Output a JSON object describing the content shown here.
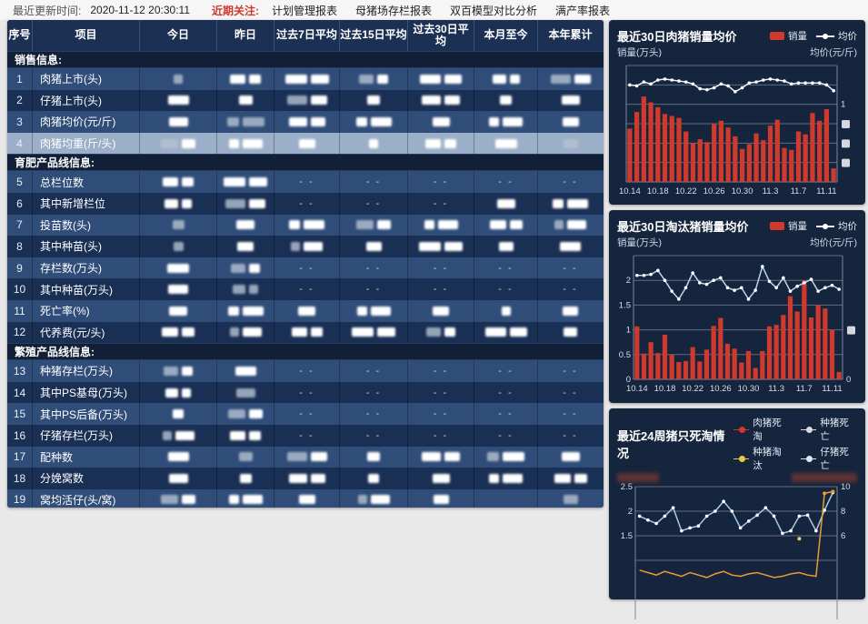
{
  "topbar": {
    "update_label": "最近更新时间:",
    "update_time": "2020-11-12 20:30:11",
    "focus_label": "近期关注:",
    "tabs": [
      "计划管理报表",
      "母猪场存栏报表",
      "双百模型对比分析",
      "满产率报表"
    ]
  },
  "table": {
    "headers": [
      "序号",
      "项目",
      "今日",
      "昨日",
      "过去7日平均",
      "过去15日平均",
      "过去30日平均",
      "本月至今",
      "本年累计"
    ],
    "sections": [
      {
        "title": "销售信息:",
        "rows": [
          {
            "no": "1",
            "label": "肉猪上市(头)",
            "hl": false,
            "cells": [
              "g1",
              "b2",
              "b2",
              "b2",
              "b2",
              "b2",
              "b2"
            ]
          },
          {
            "no": "2",
            "label": "仔猪上市(头)",
            "hl": false,
            "cells": [
              "b1",
              "b1",
              "b2",
              "b1",
              "b2",
              "b1",
              "b1"
            ]
          },
          {
            "no": "3",
            "label": "肉猪均价(元/斤)",
            "hl": false,
            "cells": [
              "b1",
              "g2",
              "b2",
              "b2",
              "b1",
              "b2",
              "b1"
            ]
          },
          {
            "no": "4",
            "label": "肉猪均重(斤/头)",
            "hl": true,
            "cells": [
              "b2",
              "b2",
              "b1",
              "b1",
              "b2",
              "b1",
              "g1"
            ]
          }
        ]
      },
      {
        "title": "育肥产品线信息:",
        "rows": [
          {
            "no": "5",
            "label": "总栏位数",
            "hl": false,
            "cells": [
              "b2",
              "b2",
              "d",
              "d",
              "d",
              "d",
              "d"
            ]
          },
          {
            "no": "6",
            "label": "其中新增栏位",
            "hl": false,
            "cells": [
              "b2",
              "b2",
              "d",
              "d",
              "d",
              "b1",
              "b2"
            ]
          },
          {
            "no": "7",
            "label": "投苗数(头)",
            "hl": false,
            "cells": [
              "g1",
              "b1",
              "b2",
              "b2",
              "b2",
              "b2",
              "b2"
            ]
          },
          {
            "no": "8",
            "label": "其中种苗(头)",
            "hl": false,
            "cells": [
              "g1",
              "b1",
              "b2",
              "b1",
              "b2",
              "b1",
              "b1"
            ]
          },
          {
            "no": "9",
            "label": "存栏数(万头)",
            "hl": false,
            "cells": [
              "b1",
              "b2",
              "d",
              "d",
              "d",
              "d",
              "d"
            ]
          },
          {
            "no": "10",
            "label": "其中种苗(万头)",
            "hl": false,
            "cells": [
              "b1",
              "g2",
              "d",
              "d",
              "d",
              "d",
              "d"
            ]
          },
          {
            "no": "11",
            "label": "死亡率(%)",
            "hl": false,
            "cells": [
              "b1",
              "b2",
              "b1",
              "b2",
              "b1",
              "b1",
              "b1"
            ]
          },
          {
            "no": "12",
            "label": "代养费(元/头)",
            "hl": false,
            "cells": [
              "b2",
              "b2",
              "b2",
              "b2",
              "b2",
              "b2",
              "b1"
            ]
          }
        ]
      },
      {
        "title": "繁殖产品线信息:",
        "rows": [
          {
            "no": "13",
            "label": "种猪存栏(万头)",
            "hl": false,
            "cells": [
              "b2",
              "b1",
              "d",
              "d",
              "d",
              "d",
              "d"
            ]
          },
          {
            "no": "14",
            "label": "其中PS基母(万头)",
            "hl": false,
            "cells": [
              "b2",
              "g1",
              "d",
              "d",
              "d",
              "d",
              "d"
            ]
          },
          {
            "no": "15",
            "label": "其中PS后备(万头)",
            "hl": false,
            "cells": [
              "b1",
              "b2",
              "d",
              "d",
              "d",
              "d",
              "d"
            ]
          },
          {
            "no": "16",
            "label": "仔猪存栏(万头)",
            "hl": false,
            "cells": [
              "b2",
              "b2",
              "d",
              "d",
              "d",
              "d",
              "d"
            ]
          },
          {
            "no": "17",
            "label": "配种数",
            "hl": false,
            "cells": [
              "b1",
              "g1",
              "b2",
              "b1",
              "b2",
              "b2",
              "b1"
            ]
          },
          {
            "no": "18",
            "label": "分娩窝数",
            "hl": false,
            "cells": [
              "b1",
              "b1",
              "b2",
              "b1",
              "b1",
              "b2",
              "b2"
            ]
          },
          {
            "no": "19",
            "label": "窝均活仔(头/窝)",
            "hl": false,
            "cells": [
              "b2",
              "b2",
              "b1",
              "b2",
              "b1",
              "",
              "g1"
            ]
          }
        ]
      }
    ]
  },
  "chart_data": [
    {
      "type": "bar",
      "title": "最近30日肉猪销量均价",
      "legend": [
        "销量",
        "均价"
      ],
      "ylabel_left": "销量(万头)",
      "ylabel_right": "均价(元/斤)",
      "x_tick_labels": [
        "10.14",
        "10.18",
        "10.22",
        "10.26",
        "10.30",
        "11.3",
        "11.7",
        "11.11"
      ],
      "x_tick_every": 4,
      "ylim": [
        0,
        120
      ],
      "grid_step": 20,
      "bars": [
        55,
        72,
        88,
        82,
        77,
        70,
        68,
        66,
        52,
        40,
        44,
        41,
        60,
        63,
        56,
        47,
        34,
        39,
        50,
        43,
        58,
        64,
        35,
        33,
        52,
        49,
        71,
        63,
        75,
        14
      ],
      "line": [
        100,
        99,
        103,
        101,
        105,
        106,
        105,
        104,
        103,
        101,
        96,
        95,
        97,
        101,
        99,
        93,
        97,
        102,
        103,
        105,
        106,
        105,
        104,
        101,
        102,
        102,
        102,
        102,
        100,
        94
      ],
      "left_labels": [],
      "right_labels": [
        {
          "v": 80,
          "t": "1"
        }
      ],
      "right_redacted": [
        60,
        40,
        20
      ],
      "note": "left axis values redacted"
    },
    {
      "type": "bar",
      "title": "最近30日淘汰猪销量均价",
      "legend": [
        "销量",
        "均价"
      ],
      "ylabel_left": "销量(万头)",
      "ylabel_right": "均价(元/斤)",
      "x_tick_labels": [
        "10.14",
        "10.18",
        "10.22",
        "10.26",
        "10.30",
        "11.3",
        "11.7",
        "11.11"
      ],
      "x_tick_every": 4,
      "ylim": [
        0,
        2.5
      ],
      "grid_step": 0.5,
      "bars": [
        1.07,
        0.52,
        0.75,
        0.53,
        0.9,
        0.5,
        0.35,
        0.37,
        0.65,
        0.36,
        0.6,
        1.08,
        1.24,
        0.72,
        0.62,
        0.34,
        0.57,
        0.23,
        0.57,
        1.07,
        1.1,
        1.3,
        1.68,
        1.37,
        2.0,
        1.25,
        1.5,
        1.43,
        1.0,
        0.15
      ],
      "line": [
        2.1,
        2.1,
        2.12,
        2.2,
        2.0,
        1.78,
        1.62,
        1.85,
        2.15,
        1.95,
        1.92,
        2.0,
        2.05,
        1.85,
        1.8,
        1.85,
        1.62,
        1.8,
        2.28,
        1.98,
        1.85,
        2.05,
        1.78,
        1.88,
        1.95,
        2.02,
        1.78,
        1.85,
        1.9,
        1.82
      ],
      "left_labels": [
        {
          "v": 2,
          "t": "2"
        },
        {
          "v": 1.5,
          "t": "1.5"
        },
        {
          "v": 1,
          "t": "1"
        },
        {
          "v": 0.5,
          "t": "0.5"
        },
        {
          "v": 0,
          "t": "0"
        }
      ],
      "right_labels": [
        {
          "v": 0,
          "t": "0"
        }
      ],
      "right_redacted": [
        1.0
      ]
    },
    {
      "type": "line",
      "title": "最近24周猪只死淘情况",
      "legend": [
        "肉猪死淘",
        "种猪死亡",
        "种猪淘汰",
        "仔猪死亡"
      ],
      "ylim": [
        0,
        2.5
      ],
      "grid_step": 0.5,
      "left_labels": [
        {
          "v": 2.5,
          "t": "2.5"
        },
        {
          "v": 2,
          "t": "2"
        },
        {
          "v": 1.5,
          "t": "1.5"
        }
      ],
      "right_labels": [
        {
          "v": 2.5,
          "t": "10"
        },
        {
          "v": 2,
          "t": "8"
        },
        {
          "v": 1.5,
          "t": "6"
        }
      ],
      "series": [
        {
          "name": "肉猪死淘",
          "axis": "left",
          "values": [
            1.9,
            1.82,
            1.75,
            1.9,
            2.07,
            1.6,
            1.66,
            1.7,
            1.9,
            2.0,
            2.2,
            2.0,
            1.66,
            1.8,
            1.92,
            2.07,
            1.9,
            1.55,
            1.6,
            1.9,
            1.92,
            1.6,
            2.02,
            2.38
          ]
        },
        {
          "name": "种猪淘汰",
          "axis": "right",
          "values": [
            3.2,
            3.0,
            2.8,
            3.1,
            2.9,
            2.7,
            3.0,
            2.8,
            2.6,
            2.9,
            3.1,
            2.8,
            2.7,
            2.9,
            3.0,
            2.8,
            2.6,
            2.7,
            2.9,
            3.0,
            2.8,
            2.7,
            9.45,
            9.6
          ]
        }
      ],
      "stray_point": {
        "series": "种猪淘汰",
        "x_index": 19,
        "value_right": 5.76
      },
      "note": "axis unit captions redacted; lower half of chart cut off by viewport"
    }
  ],
  "colors": {
    "bar_red": "#cf3a2c",
    "price_line_1": "#eef2f7",
    "price_line_2": "#b9d7ee",
    "death_line": "#a6cbe8",
    "cull_line": "#e89c35",
    "stray_dot": "#f0cf5e",
    "panel_bg": "#16253e",
    "row_light": "#2f4d78",
    "row_dark": "#1a2f54",
    "row_highlight": "#9cafc8",
    "focus_red": "#cf3a2c"
  }
}
